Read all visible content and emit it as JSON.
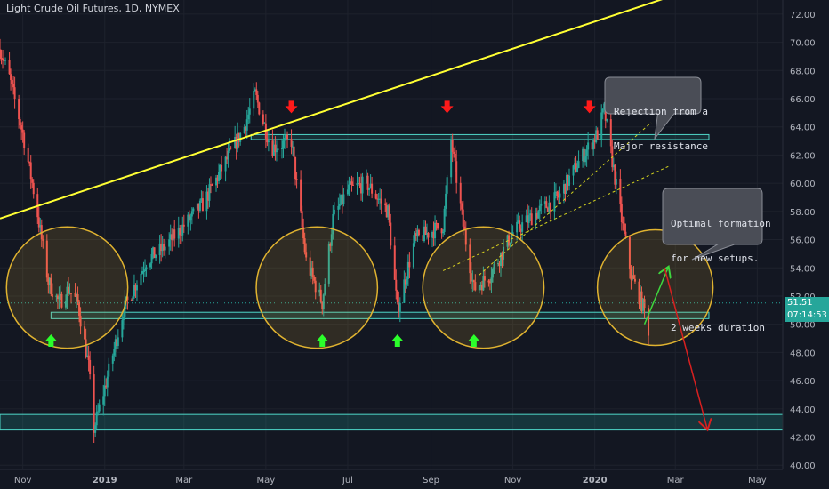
{
  "header": {
    "title": "Light Crude Oil Futures, 1D, NYMEX"
  },
  "price_tags": {
    "last_price": "51.51",
    "countdown": "07:14:53"
  },
  "annotations": {
    "rejection": [
      "Rejection from a",
      "Major resistance"
    ],
    "optimal": [
      "Optimal formation",
      "for new setups.",
      "",
      "2 weeks duration"
    ]
  },
  "colors": {
    "background": "#131722",
    "up": "#26a69a",
    "down": "#ef5350",
    "zone": "#4fd6c8",
    "trendline": "#ffff33",
    "channel": "#d4d41e",
    "circle": "#e0b330",
    "arrow_down": "#ff1a1a",
    "arrow_up": "#2bff2b",
    "projection_up": "#3ed63e",
    "projection_down": "#d82020"
  },
  "chart_data": {
    "type": "candlestick",
    "x_ticks": [
      "Nov",
      "2019",
      "Mar",
      "May",
      "Jul",
      "Sep",
      "Nov",
      "2020",
      "Mar",
      "May"
    ],
    "y_ticks": [
      "72.00",
      "70.00",
      "68.00",
      "66.00",
      "64.00",
      "62.00",
      "60.00",
      "58.00",
      "56.00",
      "54.00",
      "52.00",
      "50.00",
      "48.00",
      "46.00",
      "44.00",
      "42.00",
      "40.00"
    ],
    "ylim": [
      39.7,
      73.0
    ],
    "x_range_months": [
      "2018-10-15",
      "2020-05-20"
    ],
    "price_path": [
      [
        "2018-10-15",
        69.5
      ],
      [
        "2018-10-22",
        67.5
      ],
      [
        "2018-11-01",
        63.5
      ],
      [
        "2018-11-10",
        59.0
      ],
      [
        "2018-11-20",
        53.0
      ],
      [
        "2018-11-28",
        51.5
      ],
      [
        "2018-12-05",
        52.5
      ],
      [
        "2018-12-12",
        51.5
      ],
      [
        "2018-12-20",
        47.0
      ],
      [
        "2018-12-24",
        42.6
      ],
      [
        "2019-01-01",
        45.5
      ],
      [
        "2019-01-15",
        51.0
      ],
      [
        "2019-02-01",
        54.5
      ],
      [
        "2019-02-15",
        55.5
      ],
      [
        "2019-03-01",
        57.0
      ],
      [
        "2019-03-15",
        58.5
      ],
      [
        "2019-04-01",
        61.5
      ],
      [
        "2019-04-15",
        64.0
      ],
      [
        "2019-04-23",
        66.3
      ],
      [
        "2019-05-05",
        62.5
      ],
      [
        "2019-05-20",
        63.0
      ],
      [
        "2019-05-31",
        54.5
      ],
      [
        "2019-06-12",
        51.5
      ],
      [
        "2019-06-20",
        57.5
      ],
      [
        "2019-07-01",
        59.5
      ],
      [
        "2019-07-15",
        60.0
      ],
      [
        "2019-07-31",
        58.0
      ],
      [
        "2019-08-07",
        51.0
      ],
      [
        "2019-08-20",
        56.0
      ],
      [
        "2019-09-10",
        57.0
      ],
      [
        "2019-09-16",
        63.0
      ],
      [
        "2019-09-25",
        57.0
      ],
      [
        "2019-10-03",
        52.5
      ],
      [
        "2019-10-15",
        53.5
      ],
      [
        "2019-11-01",
        56.5
      ],
      [
        "2019-11-20",
        58.0
      ],
      [
        "2019-12-05",
        59.0
      ],
      [
        "2019-12-20",
        61.5
      ],
      [
        "2020-01-03",
        63.5
      ],
      [
        "2020-01-08",
        65.2
      ],
      [
        "2020-01-20",
        58.0
      ],
      [
        "2020-01-28",
        53.5
      ],
      [
        "2020-02-07",
        51.0
      ],
      [
        "2020-02-10",
        49.6
      ]
    ],
    "zones": [
      {
        "name": "resistance",
        "y": [
          63.1,
          63.45
        ],
        "x": [
          "2019-04-20",
          "2020-03-26"
        ]
      },
      {
        "name": "support",
        "y": [
          50.4,
          50.85
        ],
        "x": [
          "2018-11-22",
          "2020-03-26"
        ]
      },
      {
        "name": "lower-support",
        "y": [
          42.5,
          43.6
        ],
        "x": [
          "2018-10-15",
          "2020-05-20"
        ]
      }
    ],
    "trendline": {
      "from": [
        "2018-10-15",
        57.5
      ],
      "to": [
        "2020-02-28",
        73.3
      ]
    },
    "channel": [
      {
        "from": [
          "2019-10-07",
          53.5
        ],
        "to": [
          "2020-02-12",
          64.3
        ]
      },
      {
        "from": [
          "2019-09-10",
          53.8
        ],
        "to": [
          "2020-02-25",
          61.2
        ]
      }
    ],
    "circles": [
      {
        "center": [
          "2018-12-04",
          52.6
        ],
        "radius_price": 4.3
      },
      {
        "center": [
          "2019-06-08",
          52.6
        ],
        "radius_price": 4.3
      },
      {
        "center": [
          "2019-10-10",
          52.6
        ],
        "radius_price": 4.3
      },
      {
        "center": [
          "2020-02-15",
          52.6
        ],
        "radius_price": 4.1
      }
    ],
    "down_arrows": [
      [
        "2019-05-20",
        64.4
      ],
      [
        "2019-09-13",
        64.4
      ],
      [
        "2019-12-28",
        64.4
      ]
    ],
    "up_arrows": [
      [
        "2018-11-22",
        49.6
      ],
      [
        "2019-06-12",
        49.6
      ],
      [
        "2019-08-07",
        49.6
      ],
      [
        "2019-10-03",
        49.6
      ]
    ],
    "projections": [
      {
        "name": "up",
        "from": [
          "2020-02-07",
          50.0
        ],
        "to": [
          "2020-02-25",
          54.1
        ]
      },
      {
        "name": "down",
        "from": [
          "2020-02-22",
          54.0
        ],
        "to": [
          "2020-03-25",
          42.5
        ]
      }
    ],
    "last_price_line": 51.51
  }
}
